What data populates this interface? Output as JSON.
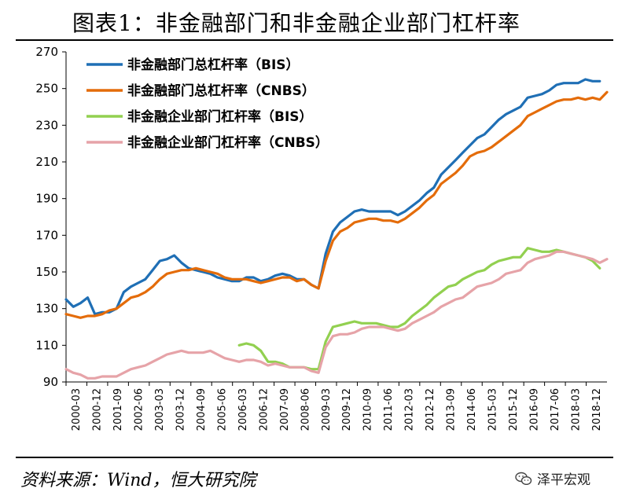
{
  "header": {
    "title": "图表1：非金融部门和非金融企业部门杠杆率"
  },
  "footer": {
    "source": "资料来源：Wind，恒大研究院",
    "watermark": "泽平宏观"
  },
  "chart_data": {
    "type": "line",
    "title": "图表1：非金融部门和非金融企业部门杠杆率",
    "xlabel": "",
    "ylabel": "",
    "ylim": [
      90,
      270
    ],
    "yticks": [
      90,
      110,
      130,
      150,
      170,
      190,
      210,
      230,
      250,
      270
    ],
    "xlim": [
      2000.0,
      2018.75
    ],
    "xtick_labels": [
      "2000-03",
      "2000-12",
      "2001-09",
      "2002-06",
      "2003-03",
      "2003-12",
      "2004-09",
      "2005-06",
      "2006-03",
      "2006-12",
      "2007-09",
      "2008-06",
      "2009-03",
      "2009-12",
      "2010-09",
      "2011-06",
      "2012-03",
      "2012-12",
      "2013-09",
      "2014-06",
      "2015-03",
      "2015-12",
      "2016-09",
      "2017-06",
      "2018-03",
      "2018-12"
    ],
    "legend_position": "top-left",
    "series": [
      {
        "name": "非金融部门总杠杆率（BIS）",
        "color": "#1f6fb5",
        "x": [
          2000.0,
          2000.25,
          2000.5,
          2000.75,
          2001.0,
          2001.25,
          2001.5,
          2001.75,
          2002.0,
          2002.25,
          2002.5,
          2002.75,
          2003.0,
          2003.25,
          2003.5,
          2003.75,
          2004.0,
          2004.25,
          2004.5,
          2004.75,
          2005.0,
          2005.25,
          2005.5,
          2005.75,
          2006.0,
          2006.25,
          2006.5,
          2006.75,
          2007.0,
          2007.25,
          2007.5,
          2007.75,
          2008.0,
          2008.25,
          2008.5,
          2008.75,
          2009.0,
          2009.25,
          2009.5,
          2009.75,
          2010.0,
          2010.25,
          2010.5,
          2010.75,
          2011.0,
          2011.25,
          2011.5,
          2011.75,
          2012.0,
          2012.25,
          2012.5,
          2012.75,
          2013.0,
          2013.25,
          2013.5,
          2013.75,
          2014.0,
          2014.25,
          2014.5,
          2014.75,
          2015.0,
          2015.25,
          2015.5,
          2015.75,
          2016.0,
          2016.25,
          2016.5,
          2016.75,
          2017.0,
          2017.25,
          2017.5,
          2017.75,
          2018.0,
          2018.25,
          2018.5
        ],
        "values": [
          135,
          131,
          133,
          136,
          127,
          128,
          128,
          130,
          139,
          142,
          144,
          146,
          151,
          156,
          157,
          159,
          155,
          152,
          151,
          150,
          149,
          147,
          146,
          145,
          145,
          147,
          147,
          145,
          146,
          148,
          149,
          148,
          146,
          146,
          143,
          141,
          160,
          172,
          177,
          180,
          183,
          184,
          183,
          183,
          183,
          183,
          181,
          183,
          186,
          189,
          193,
          196,
          203,
          207,
          211,
          215,
          219,
          223,
          225,
          229,
          233,
          236,
          238,
          240,
          245,
          246,
          247,
          249,
          252,
          253,
          253,
          253,
          255,
          254,
          254
        ]
      },
      {
        "name": "非金融部门总杠杆率（CNBS）",
        "color": "#e46c0a",
        "x": [
          2000.0,
          2000.25,
          2000.5,
          2000.75,
          2001.0,
          2001.25,
          2001.5,
          2001.75,
          2002.0,
          2002.25,
          2002.5,
          2002.75,
          2003.0,
          2003.25,
          2003.5,
          2003.75,
          2004.0,
          2004.25,
          2004.5,
          2004.75,
          2005.0,
          2005.25,
          2005.5,
          2005.75,
          2006.0,
          2006.25,
          2006.5,
          2006.75,
          2007.0,
          2007.25,
          2007.5,
          2007.75,
          2008.0,
          2008.25,
          2008.5,
          2008.75,
          2009.0,
          2009.25,
          2009.5,
          2009.75,
          2010.0,
          2010.25,
          2010.5,
          2010.75,
          2011.0,
          2011.25,
          2011.5,
          2011.75,
          2012.0,
          2012.25,
          2012.5,
          2012.75,
          2013.0,
          2013.25,
          2013.5,
          2013.75,
          2014.0,
          2014.25,
          2014.5,
          2014.75,
          2015.0,
          2015.25,
          2015.5,
          2015.75,
          2016.0,
          2016.25,
          2016.5,
          2016.75,
          2017.0,
          2017.25,
          2017.5,
          2017.75,
          2018.0,
          2018.25,
          2018.5,
          2018.75
        ],
        "values": [
          127,
          126,
          125,
          126,
          126,
          127,
          129,
          130,
          133,
          136,
          137,
          139,
          142,
          146,
          149,
          150,
          151,
          151,
          152,
          151,
          150,
          149,
          147,
          146,
          146,
          146,
          145,
          144,
          145,
          146,
          147,
          147,
          145,
          146,
          143,
          141,
          156,
          167,
          172,
          174,
          177,
          178,
          179,
          179,
          178,
          178,
          177,
          179,
          182,
          185,
          189,
          192,
          198,
          201,
          204,
          208,
          213,
          215,
          216,
          218,
          221,
          224,
          227,
          230,
          235,
          237,
          239,
          241,
          243,
          244,
          244,
          245,
          244,
          245,
          244,
          248
        ]
      },
      {
        "name": "非金融企业部门杠杆率（BIS）",
        "color": "#92d050",
        "x": [
          2006.0,
          2006.25,
          2006.5,
          2006.75,
          2007.0,
          2007.25,
          2007.5,
          2007.75,
          2008.0,
          2008.25,
          2008.5,
          2008.75,
          2009.0,
          2009.25,
          2009.5,
          2009.75,
          2010.0,
          2010.25,
          2010.5,
          2010.75,
          2011.0,
          2011.25,
          2011.5,
          2011.75,
          2012.0,
          2012.25,
          2012.5,
          2012.75,
          2013.0,
          2013.25,
          2013.5,
          2013.75,
          2014.0,
          2014.25,
          2014.5,
          2014.75,
          2015.0,
          2015.25,
          2015.5,
          2015.75,
          2016.0,
          2016.25,
          2016.5,
          2016.75,
          2017.0,
          2017.25,
          2017.5,
          2017.75,
          2018.0,
          2018.25,
          2018.5
        ],
        "values": [
          110,
          111,
          110,
          107,
          101,
          101,
          100,
          98,
          98,
          98,
          97,
          97,
          112,
          120,
          121,
          122,
          123,
          122,
          122,
          122,
          121,
          120,
          120,
          122,
          126,
          129,
          132,
          136,
          139,
          142,
          143,
          146,
          148,
          150,
          151,
          154,
          156,
          157,
          158,
          158,
          163,
          162,
          161,
          161,
          162,
          161,
          160,
          159,
          158,
          156,
          152
        ]
      },
      {
        "name": "非金融企业部门杠杆率（CNBS）",
        "color": "#e6a3a8",
        "x": [
          2000.0,
          2000.25,
          2000.5,
          2000.75,
          2001.0,
          2001.25,
          2001.5,
          2001.75,
          2002.0,
          2002.25,
          2002.5,
          2002.75,
          2003.0,
          2003.25,
          2003.5,
          2003.75,
          2004.0,
          2004.25,
          2004.5,
          2004.75,
          2005.0,
          2005.25,
          2005.5,
          2005.75,
          2006.0,
          2006.25,
          2006.5,
          2006.75,
          2007.0,
          2007.25,
          2007.5,
          2007.75,
          2008.0,
          2008.25,
          2008.5,
          2008.75,
          2009.0,
          2009.25,
          2009.5,
          2009.75,
          2010.0,
          2010.25,
          2010.5,
          2010.75,
          2011.0,
          2011.25,
          2011.5,
          2011.75,
          2012.0,
          2012.25,
          2012.5,
          2012.75,
          2013.0,
          2013.25,
          2013.5,
          2013.75,
          2014.0,
          2014.25,
          2014.5,
          2014.75,
          2015.0,
          2015.25,
          2015.5,
          2015.75,
          2016.0,
          2016.25,
          2016.5,
          2016.75,
          2017.0,
          2017.25,
          2017.5,
          2017.75,
          2018.0,
          2018.25,
          2018.5,
          2018.75
        ],
        "values": [
          97,
          95,
          94,
          92,
          92,
          93,
          93,
          93,
          95,
          97,
          98,
          99,
          101,
          103,
          105,
          106,
          107,
          106,
          106,
          106,
          107,
          105,
          103,
          102,
          101,
          102,
          102,
          101,
          99,
          100,
          99,
          98,
          98,
          98,
          96,
          95,
          109,
          115,
          116,
          116,
          117,
          119,
          120,
          120,
          120,
          119,
          118,
          119,
          122,
          124,
          126,
          128,
          131,
          133,
          135,
          136,
          139,
          142,
          143,
          144,
          146,
          149,
          150,
          151,
          155,
          157,
          158,
          159,
          161,
          161,
          160,
          159,
          158,
          157,
          155,
          157
        ]
      }
    ]
  }
}
